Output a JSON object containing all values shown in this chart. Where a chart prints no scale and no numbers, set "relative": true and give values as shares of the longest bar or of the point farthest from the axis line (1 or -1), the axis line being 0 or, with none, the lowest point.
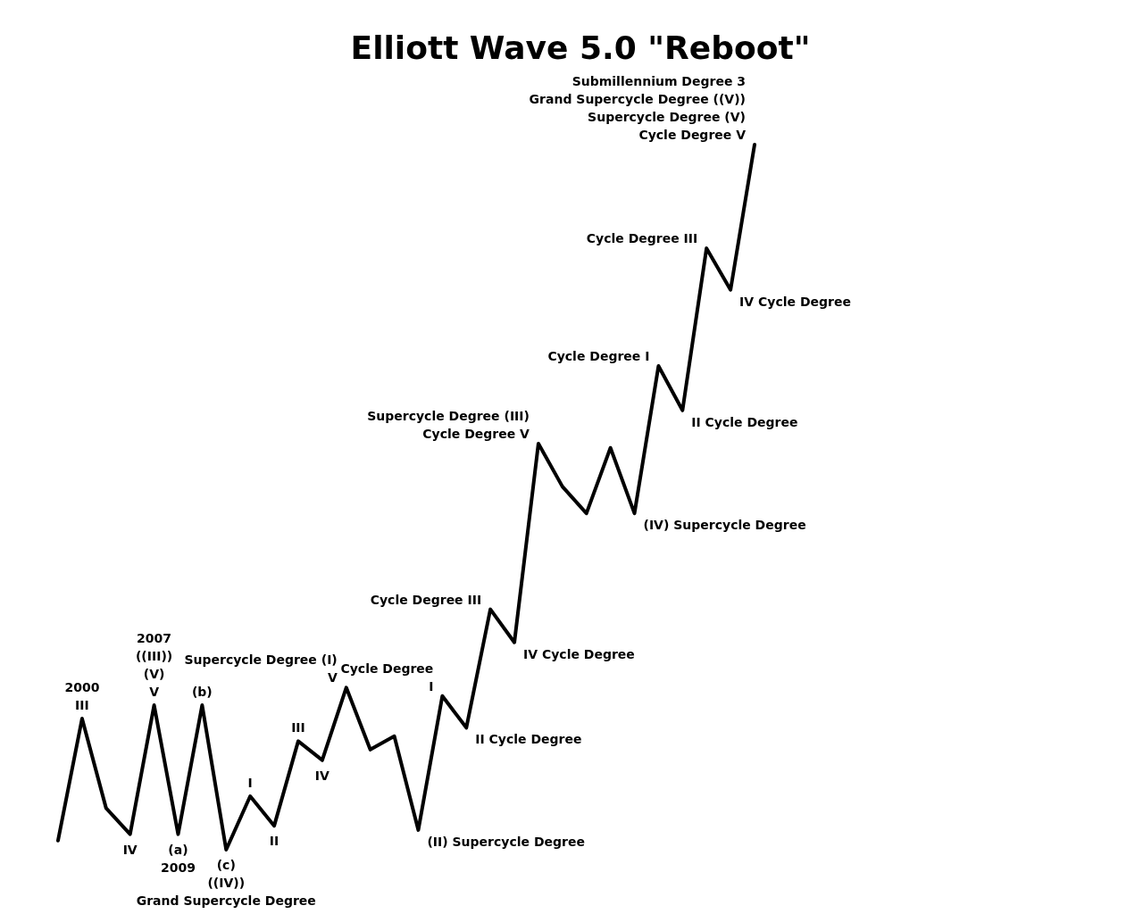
{
  "chart_data": {
    "type": "line",
    "title": "Elliott Wave 5.0 \"Reboot\"",
    "relative": true,
    "color": "#000000",
    "categories": [
      null,
      null,
      null,
      null,
      null,
      null,
      null,
      null,
      null,
      null,
      null,
      null,
      null,
      null,
      null,
      null,
      null,
      null,
      null,
      null,
      null,
      null,
      null,
      null,
      null,
      null,
      null,
      null,
      null,
      null
    ],
    "values": [
      0.013,
      0.186,
      0.059,
      0.022,
      0.205,
      0.022,
      0.205,
      0,
      0.076,
      0.034,
      0.154,
      0.127,
      0.23,
      0.142,
      0.161,
      0.028,
      0.218,
      0.173,
      0.341,
      0.294,
      0.576,
      0.515,
      0.477,
      0.57,
      0.477,
      0.686,
      0.623,
      0.853,
      0.794,
      1
    ],
    "annotations": [
      {
        "text": "2000\nIII",
        "y": 0.186
      },
      {
        "text": "IV",
        "y": 0.022
      },
      {
        "text": "2007\n((III))\n(V)\nV",
        "y": 0.205
      },
      {
        "text": "(a)\n2009",
        "y": 0.022
      },
      {
        "text": "(b)",
        "y": 0.205
      },
      {
        "text": "(c)\n((IV))\nGrand Supercycle Degree",
        "y": 0
      },
      {
        "text": "I",
        "y": 0.076
      },
      {
        "text": "II",
        "y": 0.034
      },
      {
        "text": "III",
        "y": 0.154
      },
      {
        "text": "IV",
        "y": 0.127
      },
      "Supercycle Degree (I)\nV",
      "(II) Supercycle Degree",
      "Cycle Degree\nI",
      "II Cycle Degree",
      "Cycle Degree III",
      "IV Cycle Degree",
      "Supercycle Degree (III)\nCycle Degree V",
      "(IV) Supercycle Degree",
      "Cycle Degree I",
      "II Cycle Degree",
      "Cycle Degree III",
      "IV Cycle Degree",
      "Submillennium Degree 3\nGrand Supercycle Degree ((V))\nSupercycle Degree (V)\nCycle Degree V"
    ]
  }
}
